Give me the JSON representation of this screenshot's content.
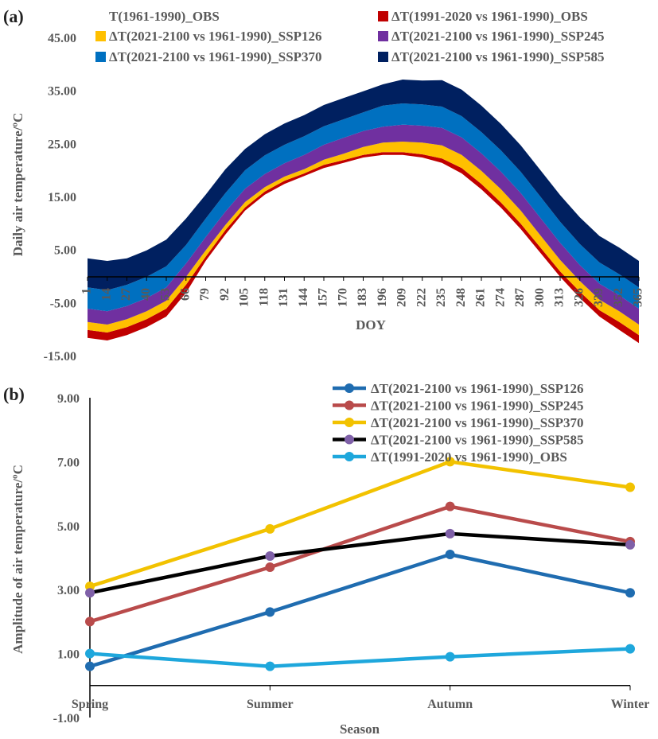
{
  "chart_data": [
    {
      "panel_label": "(a)",
      "type": "area",
      "stacked": true,
      "xlabel": "DOY",
      "ylabel": "Daily air temperature/ºC",
      "ylim": [
        -15,
        45
      ],
      "ytick_labels": [
        "45.00",
        "35.00",
        "25.00",
        "15.00",
        "5.00",
        "-5.00",
        "-15.00"
      ],
      "xtick_labels": [
        "1",
        "14",
        "27",
        "40",
        "53",
        "66",
        "79",
        "92",
        "105",
        "118",
        "131",
        "144",
        "157",
        "170",
        "183",
        "196",
        "209",
        "222",
        "235",
        "248",
        "261",
        "274",
        "287",
        "300",
        "313",
        "326",
        "339",
        "352",
        "365"
      ],
      "x": [
        1,
        14,
        27,
        40,
        53,
        66,
        79,
        92,
        105,
        118,
        131,
        144,
        157,
        170,
        183,
        196,
        209,
        222,
        235,
        248,
        261,
        274,
        287,
        300,
        313,
        326,
        339,
        352,
        365
      ],
      "series": [
        {
          "name": "T(1961-1990)_OBS",
          "color": "#ffffff",
          "values": [
            -11.5,
            -12,
            -11,
            -9.5,
            -7.5,
            -3,
            3,
            8,
            12.5,
            15.5,
            17.5,
            19,
            20.5,
            21.5,
            22.5,
            23,
            23,
            22.5,
            21.5,
            19.5,
            16.5,
            13,
            9,
            4.5,
            0,
            -4,
            -7.5,
            -10,
            -12.5
          ]
        },
        {
          "name": "ΔT(1991-2020 vs 1961-1990)_OBS",
          "color": "#c00000",
          "values": [
            1.5,
            1.5,
            1.5,
            1.5,
            1.5,
            1.5,
            0.8,
            0.8,
            0.6,
            0.6,
            0.6,
            0.5,
            0.6,
            0.5,
            0.5,
            0.5,
            0.5,
            0.6,
            0.8,
            1,
            1,
            1,
            1,
            1,
            1,
            1.2,
            1.2,
            1.5,
            1.5
          ]
        },
        {
          "name": "ΔT(2021-2100 vs 1961-1990)_SSP126",
          "color": "#ffc000",
          "values": [
            1.5,
            1.5,
            1.5,
            1.5,
            1.5,
            1.5,
            1.2,
            1,
            1,
            0.8,
            0.8,
            0.8,
            1,
            1.2,
            1.5,
            1.8,
            2,
            2.2,
            2.5,
            2.5,
            2.5,
            2.5,
            2.5,
            2.3,
            2.2,
            2,
            2,
            2,
            2
          ]
        },
        {
          "name": "ΔT(2021-2100 vs 1961-1990)_SSP245",
          "color": "#7030a0",
          "values": [
            2.5,
            2.5,
            2.5,
            2.5,
            2.5,
            2.5,
            2.5,
            2.5,
            2.5,
            2.5,
            2.5,
            2.7,
            2.8,
            3,
            3,
            3,
            3.2,
            3.2,
            3.3,
            3.3,
            3.3,
            3.3,
            3.3,
            3.3,
            3.2,
            3,
            3,
            3,
            3
          ]
        },
        {
          "name": "ΔT(2021-2100 vs 1961-1990)_SSP370",
          "color": "#0070c0",
          "values": [
            4,
            4,
            4,
            4,
            4,
            3.5,
            3.5,
            3.5,
            3.5,
            3.5,
            3.5,
            3.5,
            3.5,
            3.5,
            3.5,
            4,
            4,
            4,
            4,
            4,
            4,
            4,
            4,
            4,
            4,
            4,
            4,
            4,
            4
          ]
        },
        {
          "name": "ΔT(2021-2100 vs 1961-1990)_SSP585",
          "color": "#002060",
          "values": [
            5.5,
            5.5,
            5,
            5,
            5,
            5,
            4.5,
            4.5,
            4,
            4,
            4,
            4,
            4,
            4,
            4,
            4,
            4.5,
            4.5,
            5,
            5,
            5,
            5,
            5,
            5,
            5,
            5,
            5,
            5,
            5
          ]
        }
      ],
      "legend_position": "top"
    },
    {
      "panel_label": "(b)",
      "type": "line",
      "xlabel": "Season",
      "ylabel": "Amplitude of air temperature/ºC",
      "ylim": [
        -1,
        9
      ],
      "ytick_labels": [
        "9.00",
        "7.00",
        "5.00",
        "3.00",
        "1.00",
        "-1.00"
      ],
      "categories": [
        "Spring",
        "Summer",
        "Autumn",
        "Winter"
      ],
      "series": [
        {
          "name": "ΔT(2021-2100 vs 1961-1990)_SSP126",
          "color": "#1f6cb0",
          "values": [
            0.6,
            2.3,
            4.1,
            2.9
          ]
        },
        {
          "name": "ΔT(2021-2100 vs 1961-1990)_SSP245",
          "color": "#b94b4b",
          "values": [
            2.0,
            3.7,
            5.6,
            4.5
          ]
        },
        {
          "name": "ΔT(2021-2100 vs 1961-1990)_SSP370",
          "color": "#f2c200",
          "values": [
            3.1,
            4.9,
            7.0,
            6.2
          ]
        },
        {
          "name": "ΔT(2021-2100 vs 1961-1990)_SSP585",
          "color": "#000000",
          "marker": "#7f60a8",
          "values": [
            2.9,
            4.05,
            4.75,
            4.4
          ]
        },
        {
          "name": "ΔT(1991-2020 vs 1961-1990)_OBS",
          "color": "#1ea7dc",
          "values": [
            1.0,
            0.6,
            0.9,
            1.15
          ]
        }
      ],
      "legend_position": "top-right"
    }
  ]
}
